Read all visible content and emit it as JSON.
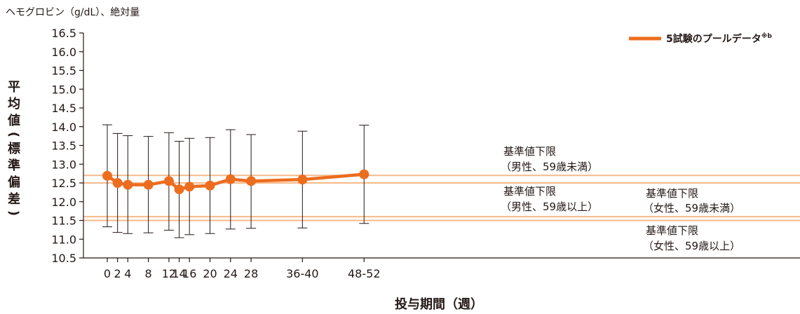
{
  "chart_data": {
    "type": "line",
    "unit_label": "ヘモグロビン（g/dL）、絶対量",
    "ylabel_chars": [
      "平",
      "均",
      "値",
      "(",
      "標",
      "準",
      "偏",
      "差",
      ")"
    ],
    "xlabel": "投与期間（週）",
    "ylim": [
      10.5,
      16.5
    ],
    "yticks": [
      "10.5",
      "11.0",
      "11.5",
      "12.0",
      "12.5",
      "13.0",
      "13.5",
      "14.0",
      "14.5",
      "15.0",
      "15.5",
      "16.0",
      "16.5"
    ],
    "x": [
      0,
      2,
      4,
      8,
      12,
      14,
      16,
      20,
      24,
      28,
      38,
      50
    ],
    "xtick_labels": [
      "0",
      "2",
      "4",
      "8",
      "12",
      "14",
      "16",
      "20",
      "24",
      "28",
      "36-40",
      "48-52"
    ],
    "series": [
      {
        "name": "5試験のプールデータ",
        "name_sup": "※b",
        "color": "#ed6d1f",
        "values": [
          12.69,
          12.5,
          12.45,
          12.45,
          12.55,
          12.33,
          12.4,
          12.43,
          12.6,
          12.55,
          12.59,
          12.73
        ],
        "err_low": [
          11.33,
          11.18,
          11.15,
          11.17,
          11.24,
          11.04,
          11.12,
          11.15,
          11.27,
          11.29,
          11.3,
          11.42
        ],
        "err_high": [
          14.05,
          13.82,
          13.76,
          13.74,
          13.84,
          13.61,
          13.69,
          13.71,
          13.92,
          13.79,
          13.88,
          14.04
        ]
      }
    ],
    "reference_lines": [
      {
        "value": 12.7,
        "color": "#f6b989",
        "label_lines": [
          "基準値下限",
          "（男性、59歳未満）"
        ]
      },
      {
        "value": 12.5,
        "color": "#f6b989",
        "label_lines": [
          "基準値下限",
          "（男性、59歳以上）"
        ]
      },
      {
        "value": 11.6,
        "color": "#f6b989",
        "label_lines": [
          "基準値下限",
          "（女性、59歳未満）"
        ]
      },
      {
        "value": 11.5,
        "color": "#f6b989",
        "label_lines": [
          "基準値下限",
          "（女性、59歳以上）"
        ]
      }
    ],
    "legend_position": "top-right",
    "grid": false
  }
}
